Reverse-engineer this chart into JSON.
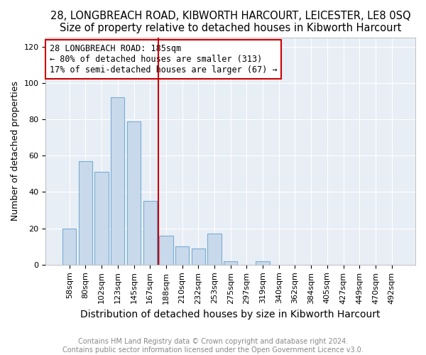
{
  "title": "28, LONGBREACH ROAD, KIBWORTH HARCOURT, LEICESTER, LE8 0SQ",
  "subtitle": "Size of property relative to detached houses in Kibworth Harcourt",
  "xlabel": "Distribution of detached houses by size in Kibworth Harcourt",
  "ylabel": "Number of detached properties",
  "categories": [
    "58sqm",
    "80sqm",
    "102sqm",
    "123sqm",
    "145sqm",
    "167sqm",
    "188sqm",
    "210sqm",
    "232sqm",
    "253sqm",
    "275sqm",
    "297sqm",
    "319sqm",
    "340sqm",
    "362sqm",
    "384sqm",
    "405sqm",
    "427sqm",
    "449sqm",
    "470sqm",
    "492sqm"
  ],
  "values": [
    20,
    57,
    51,
    92,
    79,
    35,
    16,
    10,
    9,
    17,
    2,
    0,
    2,
    0,
    0,
    0,
    0,
    0,
    0,
    0,
    0
  ],
  "vline_index": 6,
  "bar_color": "#c8d9ec",
  "bar_edge_color": "#7aadd4",
  "vline_color": "#cc0000",
  "annotation_text": "28 LONGBREACH ROAD: 185sqm\n← 80% of detached houses are smaller (313)\n17% of semi-detached houses are larger (67) →",
  "annotation_box_facecolor": "#ffffff",
  "annotation_box_edgecolor": "#cc0000",
  "ylim": [
    0,
    125
  ],
  "yticks": [
    0,
    20,
    40,
    60,
    80,
    100,
    120
  ],
  "bg_color": "#e8eef5",
  "fig_bg_color": "#ffffff",
  "title_fontsize": 10.5,
  "subtitle_fontsize": 9.5,
  "xlabel_fontsize": 10,
  "ylabel_fontsize": 9,
  "tick_fontsize": 8,
  "annotation_fontsize": 8.5,
  "footer_fontsize": 7,
  "footer": "Contains HM Land Registry data © Crown copyright and database right 2024.\nContains public sector information licensed under the Open Government Licence v3.0."
}
